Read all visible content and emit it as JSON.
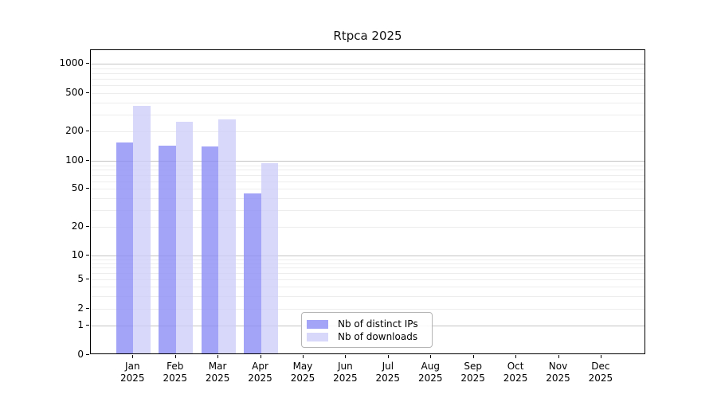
{
  "chart_data": {
    "type": "bar",
    "title": "Rtpca 2025",
    "categories": [
      "Jan",
      "Feb",
      "Mar",
      "Apr",
      "May",
      "Jun",
      "Jul",
      "Aug",
      "Sep",
      "Oct",
      "Nov",
      "Dec"
    ],
    "x_tick_year": "2025",
    "series": [
      {
        "name": "Nb of distinct IPs",
        "color": "rgba(140,140,245,0.80)",
        "values": [
          150,
          141,
          137,
          44,
          0,
          0,
          0,
          0,
          0,
          0,
          0,
          0
        ]
      },
      {
        "name": "Nb of downloads",
        "color": "rgba(205,205,248,0.78)",
        "values": [
          360,
          248,
          260,
          92,
          0,
          0,
          0,
          0,
          0,
          0,
          0,
          0
        ]
      }
    ],
    "y_axis": {
      "scale": "symlog",
      "ticks": [
        0,
        1,
        2,
        5,
        10,
        20,
        50,
        100,
        200,
        500,
        1000
      ],
      "range": [
        0,
        1000
      ],
      "major_grid_values": [
        1,
        10,
        100,
        1000
      ]
    },
    "legend": {
      "position": "lower center",
      "items": [
        "Nb of distinct IPs",
        "Nb of downloads"
      ]
    },
    "grid": {
      "major_color": "#c4c4c4",
      "minor_color": "#ededed"
    },
    "colors": {
      "axis": "#000000",
      "background": "#ffffff"
    }
  }
}
